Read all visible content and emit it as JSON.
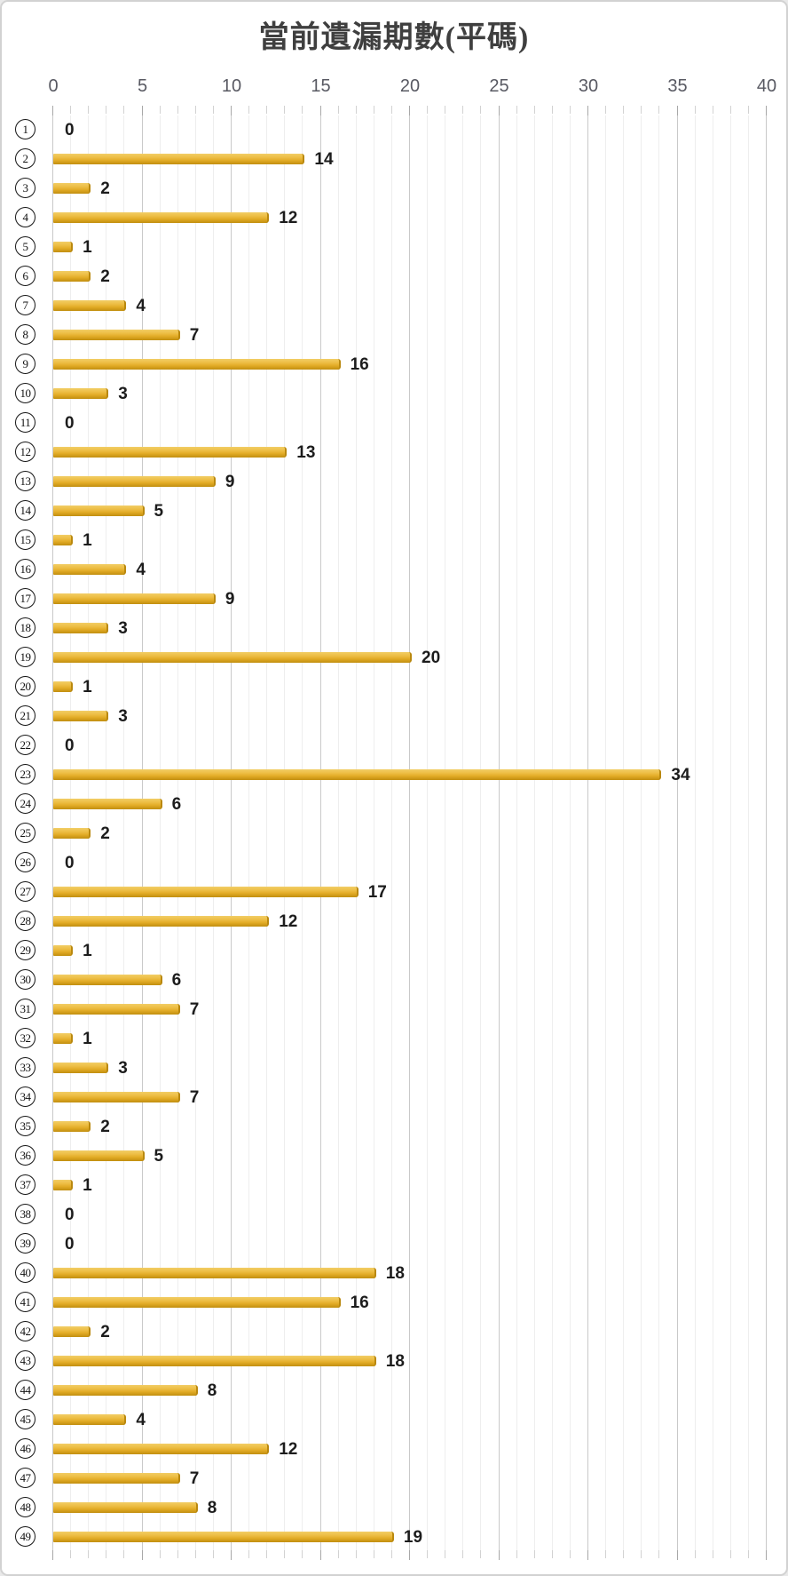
{
  "title": "當前遺漏期數(平碼)",
  "axis": {
    "ticks": [
      "0",
      "5",
      "10",
      "15",
      "20",
      "25",
      "30",
      "35",
      "40"
    ],
    "min": 0,
    "max": 40,
    "minor_step": 1,
    "major_step": 5
  },
  "rows": [
    {
      "label": "1",
      "value": 0
    },
    {
      "label": "2",
      "value": 14
    },
    {
      "label": "3",
      "value": 2
    },
    {
      "label": "4",
      "value": 12
    },
    {
      "label": "5",
      "value": 1
    },
    {
      "label": "6",
      "value": 2
    },
    {
      "label": "7",
      "value": 4
    },
    {
      "label": "8",
      "value": 7
    },
    {
      "label": "9",
      "value": 16
    },
    {
      "label": "10",
      "value": 3
    },
    {
      "label": "11",
      "value": 0
    },
    {
      "label": "12",
      "value": 13
    },
    {
      "label": "13",
      "value": 9
    },
    {
      "label": "14",
      "value": 5
    },
    {
      "label": "15",
      "value": 1
    },
    {
      "label": "16",
      "value": 4
    },
    {
      "label": "17",
      "value": 9
    },
    {
      "label": "18",
      "value": 3
    },
    {
      "label": "19",
      "value": 20
    },
    {
      "label": "20",
      "value": 1
    },
    {
      "label": "21",
      "value": 3
    },
    {
      "label": "22",
      "value": 0
    },
    {
      "label": "23",
      "value": 34
    },
    {
      "label": "24",
      "value": 6
    },
    {
      "label": "25",
      "value": 2
    },
    {
      "label": "26",
      "value": 0
    },
    {
      "label": "27",
      "value": 17
    },
    {
      "label": "28",
      "value": 12
    },
    {
      "label": "29",
      "value": 1
    },
    {
      "label": "30",
      "value": 6
    },
    {
      "label": "31",
      "value": 7
    },
    {
      "label": "32",
      "value": 1
    },
    {
      "label": "33",
      "value": 3
    },
    {
      "label": "34",
      "value": 7
    },
    {
      "label": "35",
      "value": 2
    },
    {
      "label": "36",
      "value": 5
    },
    {
      "label": "37",
      "value": 1
    },
    {
      "label": "38",
      "value": 0
    },
    {
      "label": "39",
      "value": 0
    },
    {
      "label": "40",
      "value": 18
    },
    {
      "label": "41",
      "value": 16
    },
    {
      "label": "42",
      "value": 2
    },
    {
      "label": "43",
      "value": 18
    },
    {
      "label": "44",
      "value": 8
    },
    {
      "label": "45",
      "value": 4
    },
    {
      "label": "46",
      "value": 12
    },
    {
      "label": "47",
      "value": 7
    },
    {
      "label": "48",
      "value": 8
    },
    {
      "label": "49",
      "value": 19
    }
  ],
  "colors": {
    "bar": "#E3AC27",
    "bar_light": "#F2CD66",
    "bar_dark": "#C18E0F",
    "title_text": "#3F3F3F",
    "axis_text": "#595959",
    "value_text": "#1C1C1C",
    "gridline_minor": "#EEEEEE",
    "gridline_major": "#C9C9C9"
  },
  "chart_data": {
    "type": "bar",
    "orientation": "horizontal",
    "title": "當前遺漏期數(平碼)",
    "categories": [
      1,
      2,
      3,
      4,
      5,
      6,
      7,
      8,
      9,
      10,
      11,
      12,
      13,
      14,
      15,
      16,
      17,
      18,
      19,
      20,
      21,
      22,
      23,
      24,
      25,
      26,
      27,
      28,
      29,
      30,
      31,
      32,
      33,
      34,
      35,
      36,
      37,
      38,
      39,
      40,
      41,
      42,
      43,
      44,
      45,
      46,
      47,
      48,
      49
    ],
    "category_label_style": "circled-number",
    "values": [
      0,
      14,
      2,
      12,
      1,
      2,
      4,
      7,
      16,
      3,
      0,
      13,
      9,
      5,
      1,
      4,
      9,
      3,
      20,
      1,
      3,
      0,
      34,
      6,
      2,
      0,
      17,
      12,
      1,
      6,
      7,
      1,
      3,
      7,
      2,
      5,
      1,
      0,
      0,
      18,
      16,
      2,
      18,
      8,
      4,
      12,
      7,
      8,
      19
    ],
    "xlabel": "",
    "ylabel": "",
    "xlim": [
      0,
      40
    ],
    "x_ticks": [
      0,
      5,
      10,
      15,
      20,
      25,
      30,
      35,
      40
    ],
    "grid": "vertical minor every 1, major every 5",
    "legend": "none",
    "data_labels": true,
    "bar_color": "#E3AC27"
  }
}
